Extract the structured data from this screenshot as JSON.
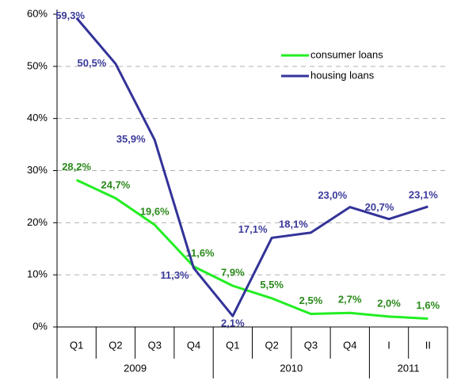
{
  "chart_data": {
    "type": "line",
    "categories": [
      "Q1",
      "Q2",
      "Q3",
      "Q4",
      "Q1",
      "Q2",
      "Q3",
      "Q4",
      "I",
      "II"
    ],
    "category_groups": [
      "2009",
      "2009",
      "2009",
      "2009",
      "2010",
      "2010",
      "2010",
      "2010",
      "2011",
      "2011"
    ],
    "series": [
      {
        "name": "consumer loans",
        "color": "#22ee22",
        "label_color": "#2a8a1a",
        "values": [
          28.2,
          24.7,
          19.6,
          11.6,
          7.9,
          5.5,
          2.5,
          2.7,
          2.0,
          1.6
        ],
        "value_labels": [
          "28,2%",
          "24,7%",
          "19,6%",
          "11,6%",
          "7,9%",
          "5,5%",
          "2,5%",
          "2,7%",
          "2,0%",
          "1,6%"
        ]
      },
      {
        "name": "housing loans",
        "color": "#333399",
        "label_color": "#3b3b9b",
        "values": [
          59.3,
          50.5,
          35.9,
          11.3,
          2.1,
          17.1,
          18.1,
          23.0,
          20.7,
          23.1
        ],
        "value_labels": [
          "59,3%",
          "50,5%",
          "35,9%",
          "11,3%",
          "2,1%",
          "17,1%",
          "18,1%",
          "23,0%",
          "20,7%",
          "23,1%"
        ]
      }
    ],
    "ylim": [
      0,
      60
    ],
    "yticks": [
      {
        "value": 0,
        "label": "0%"
      },
      {
        "value": 10,
        "label": "10%"
      },
      {
        "value": 20,
        "label": "20%"
      },
      {
        "value": 30,
        "label": "30%"
      },
      {
        "value": 40,
        "label": "40%"
      },
      {
        "value": 50,
        "label": "50%"
      },
      {
        "value": 60,
        "label": "60%"
      }
    ],
    "grid": true,
    "legend": "upper right"
  }
}
